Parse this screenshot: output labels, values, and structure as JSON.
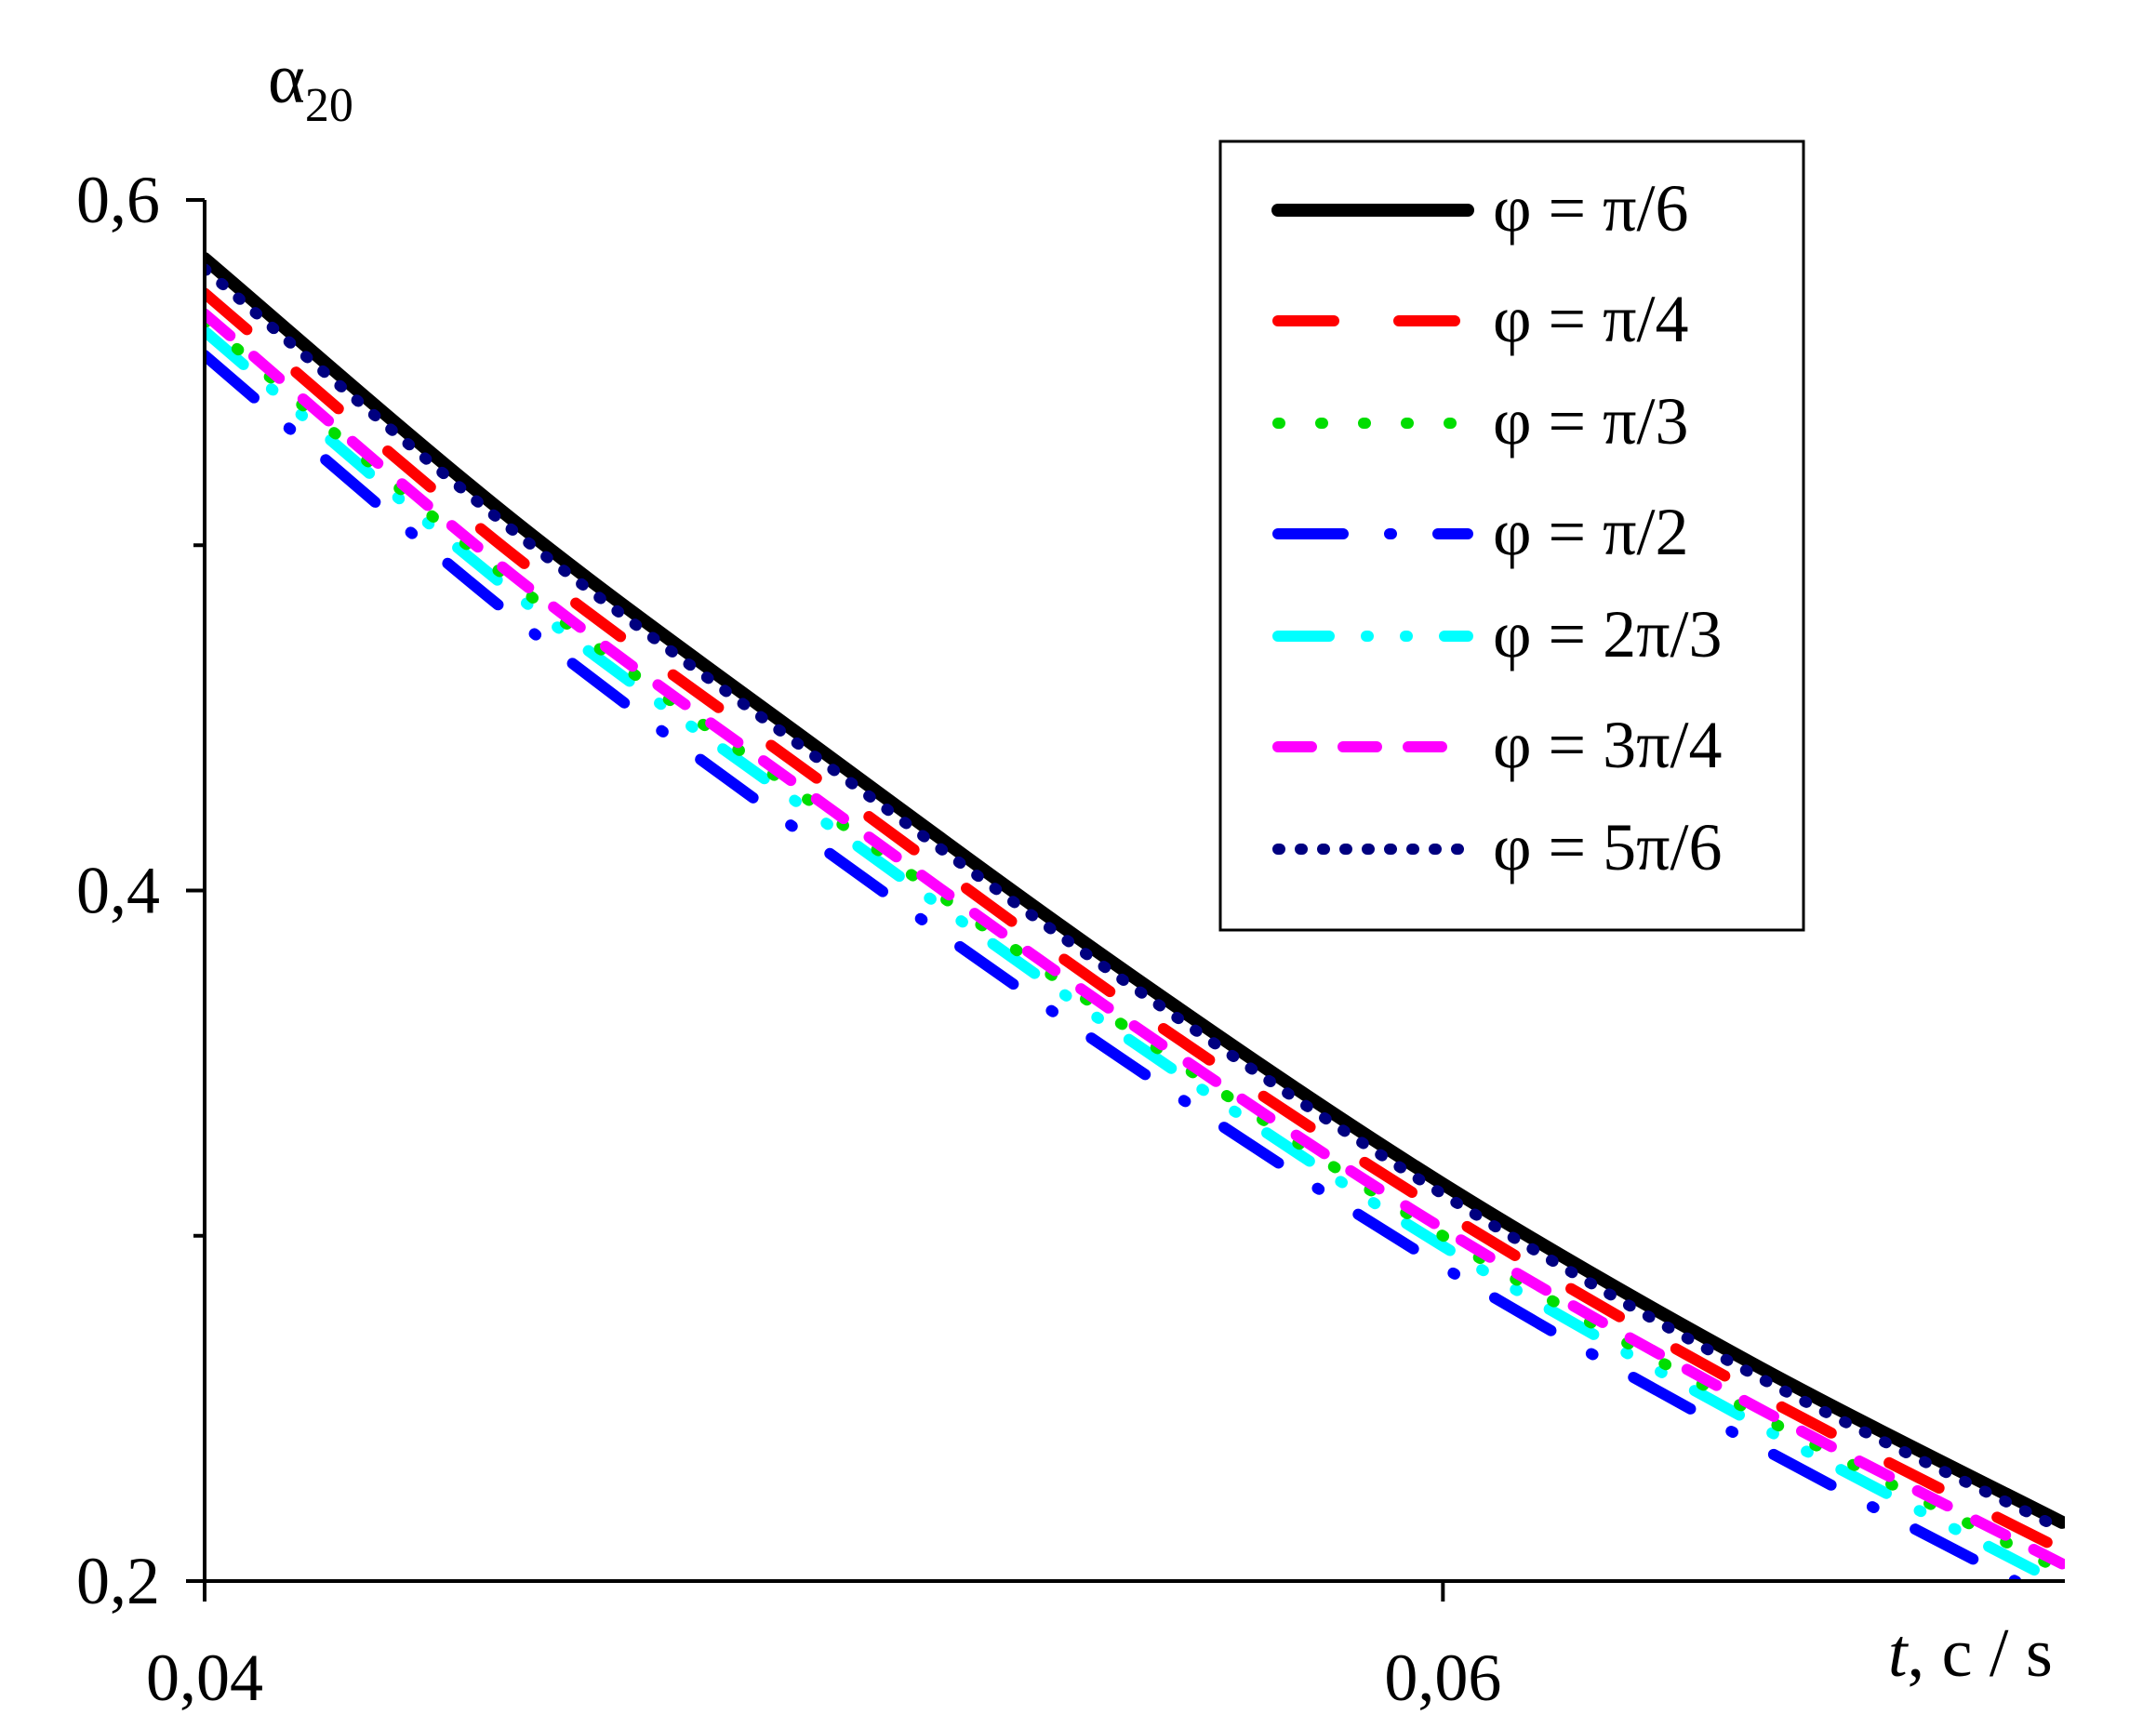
{
  "chart_data": {
    "type": "line",
    "title": "",
    "ylabel": "α",
    "ylabel_sub": "20",
    "xlabel_italic": "t",
    "xlabel_rest": ", c / s",
    "xlim": [
      0.04,
      0.07
    ],
    "ylim": [
      0.2,
      0.6
    ],
    "xticks": [
      {
        "v": 0.04,
        "label": "0,04"
      },
      {
        "v": 0.06,
        "label": "0,06"
      }
    ],
    "yticks": [
      {
        "v": 0.2,
        "label": "0,2"
      },
      {
        "v": 0.4,
        "label": "0,4"
      },
      {
        "v": 0.6,
        "label": "0,6"
      }
    ],
    "yminor": [
      0.3,
      0.5
    ],
    "grid": false,
    "legend_position": "top-right",
    "x": [
      0.04,
      0.045,
      0.05,
      0.055,
      0.06,
      0.065,
      0.07
    ],
    "series": [
      {
        "name": "φ = π/6",
        "color": "#000000",
        "dash": "",
        "values": [
          0.583,
          0.507,
          0.44,
          0.375,
          0.315,
          0.263,
          0.217
        ]
      },
      {
        "name": "φ = π/4",
        "color": "#ff0000",
        "dash": "60 70",
        "values": [
          0.573,
          0.497,
          0.431,
          0.366,
          0.307,
          0.255,
          0.209
        ]
      },
      {
        "name": "φ = π/3",
        "color": "#00dd00",
        "dash": "2 44",
        "values": [
          0.565,
          0.489,
          0.423,
          0.359,
          0.3,
          0.249,
          0.203
        ]
      },
      {
        "name": "φ = π/2",
        "color": "#0000ff",
        "dash": "70 50 2 50",
        "values": [
          0.555,
          0.479,
          0.412,
          0.349,
          0.291,
          0.24,
          0.193
        ]
      },
      {
        "name": "φ = 2π/3",
        "color": "#00ffff",
        "dash": "55 40 2 40 2 40",
        "values": [
          0.562,
          0.486,
          0.42,
          0.356,
          0.297,
          0.246,
          0.199
        ]
      },
      {
        "name": "φ = 3π/4",
        "color": "#ff00ff",
        "dash": "36 34",
        "values": [
          0.567,
          0.491,
          0.425,
          0.361,
          0.302,
          0.251,
          0.205
        ]
      },
      {
        "name": "φ = 5π/6",
        "color": "#000080",
        "dash": "2 22",
        "values": [
          0.58,
          0.504,
          0.437,
          0.372,
          0.312,
          0.26,
          0.215
        ]
      }
    ]
  }
}
